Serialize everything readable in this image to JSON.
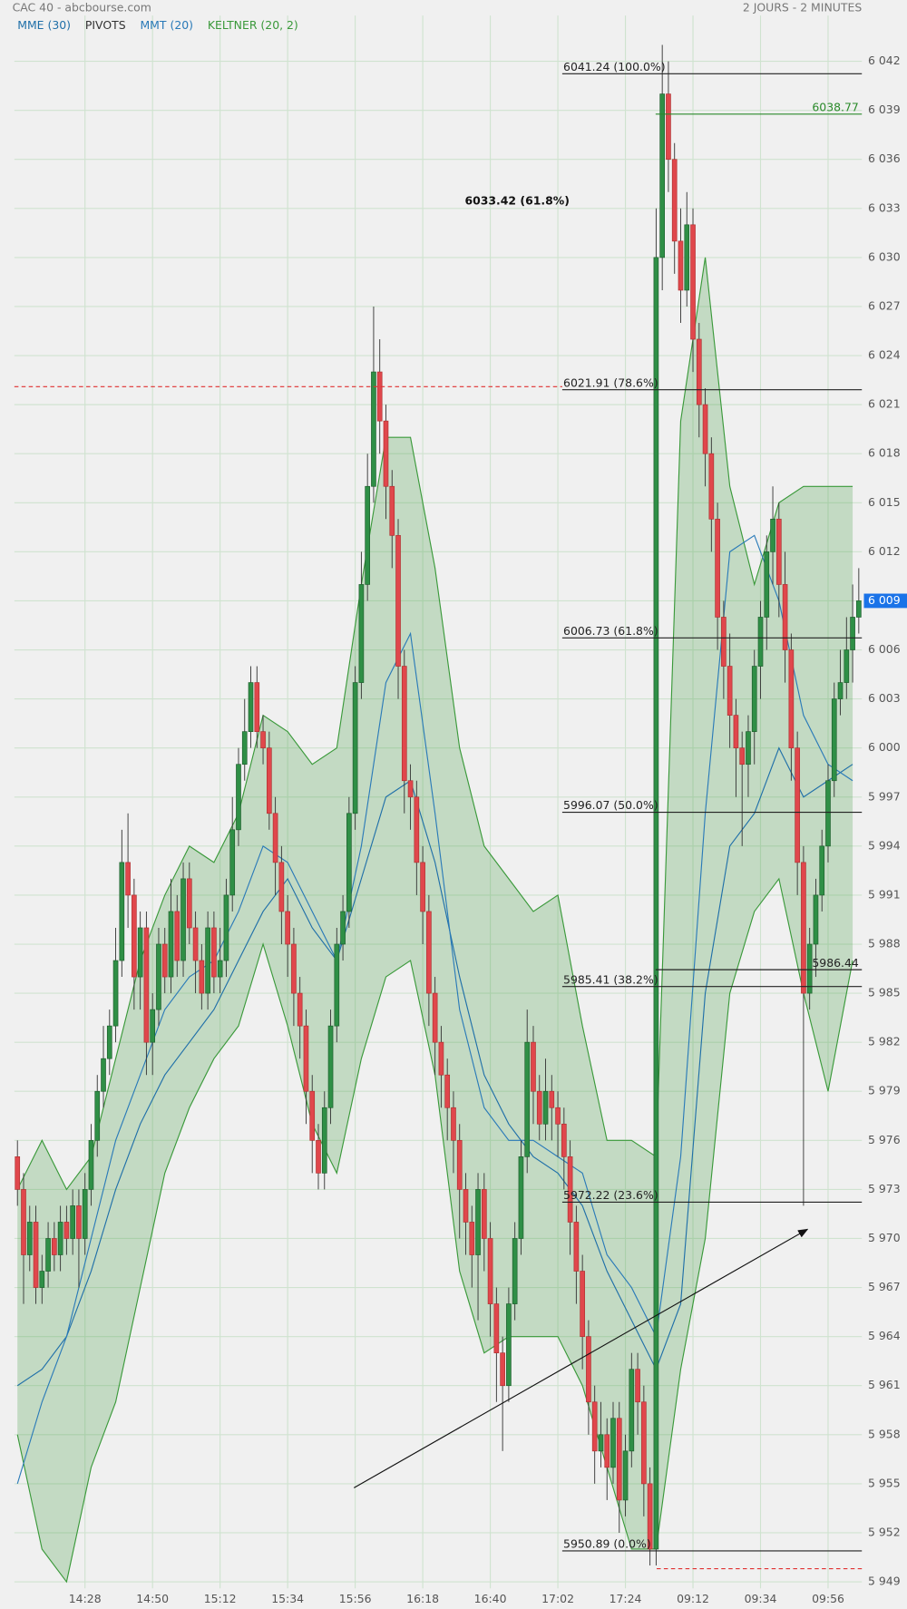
{
  "chart_data": {
    "type": "candlestick",
    "title": "CAC 40 - abcbourse.com",
    "subtitle": "2 JOURS - 2 MINUTES",
    "categories": [
      null,
      null,
      null,
      null,
      null,
      null,
      null,
      null,
      null,
      null,
      null,
      "14:28",
      null,
      null,
      null,
      null,
      null,
      null,
      null,
      null,
      null,
      null,
      "14:50",
      null,
      null,
      null,
      null,
      null,
      null,
      null,
      null,
      null,
      null,
      "15:12",
      null,
      null,
      null,
      null,
      null,
      null,
      null,
      null,
      null,
      null,
      "15:34",
      null,
      null,
      null,
      null,
      null,
      null,
      null,
      null,
      null,
      null,
      "15:56",
      null,
      null,
      null,
      null,
      null,
      null,
      null,
      null,
      null,
      null,
      "16:18",
      null,
      null,
      null,
      null,
      null,
      null,
      null,
      null,
      null,
      null,
      "16:40",
      null,
      null,
      null,
      null,
      null,
      null,
      null,
      null,
      null,
      null,
      "17:02",
      null,
      null,
      null,
      null,
      null,
      null,
      null,
      null,
      null,
      null,
      "17:24",
      null,
      null,
      null,
      null,
      null,
      null,
      null,
      null,
      null,
      null,
      "09:12",
      null,
      null,
      null,
      null,
      null,
      null,
      null,
      null,
      null,
      null,
      "09:34",
      null,
      null,
      null,
      null,
      null,
      null,
      null,
      null,
      null,
      null,
      "09:56",
      null,
      null,
      null,
      null,
      null
    ],
    "open": [
      5975,
      5973,
      5969,
      5971,
      5967,
      5968,
      5970,
      5969,
      5971,
      5970,
      5972,
      5970,
      5973,
      5976,
      5979,
      5981,
      5983,
      5987,
      5993,
      5991,
      5986,
      5989,
      5982,
      5984,
      5988,
      5986,
      5990,
      5987,
      5992,
      5989,
      5987,
      5985,
      5989,
      5986,
      5987,
      5991,
      5995,
      5999,
      6001,
      6004,
      6001,
      6000,
      5996,
      5993,
      5990,
      5988,
      5985,
      5983,
      5979,
      5976,
      5974,
      5978,
      5983,
      5988,
      5990,
      5996,
      6004,
      6010,
      6016,
      6023,
      6020,
      6016,
      6013,
      6005,
      5998,
      5997,
      5993,
      5990,
      5985,
      5982,
      5980,
      5978,
      5976,
      5973,
      5971,
      5969,
      5973,
      5970,
      5966,
      5963,
      5961,
      5966,
      5970,
      5975,
      5982,
      5979,
      5977,
      5979,
      5978,
      5977,
      5975,
      5971,
      5968,
      5964,
      5960,
      5957,
      5958,
      5956,
      5959,
      5954,
      5957,
      5962,
      5960,
      5955,
      5951,
      6030,
      6040,
      6036,
      6031,
      6028,
      6032,
      6025,
      6021,
      6018,
      6014,
      6008,
      6005,
      6002,
      6000,
      5999,
      6001,
      6005,
      6008,
      6012,
      6014,
      6010,
      6006,
      6000,
      5993,
      5985,
      5988,
      5991,
      5994,
      5998,
      6003,
      6004,
      6006,
      6008
    ],
    "high": [
      5976,
      5974,
      5972,
      5972,
      5969,
      5971,
      5971,
      5972,
      5972,
      5973,
      5973,
      5974,
      5977,
      5980,
      5983,
      5984,
      5989,
      5995,
      5996,
      5992,
      5990,
      5990,
      5985,
      5989,
      5989,
      5992,
      5991,
      5993,
      5993,
      5990,
      5988,
      5990,
      5990,
      5989,
      5992,
      5997,
      6000,
      6003,
      6005,
      6005,
      6002,
      6001,
      5997,
      5994,
      5991,
      5989,
      5986,
      5984,
      5980,
      5977,
      5979,
      5984,
      5989,
      5991,
      5997,
      6005,
      6012,
      6018,
      6027,
      6025,
      6021,
      6017,
      6014,
      6006,
      5999,
      5998,
      5994,
      5991,
      5986,
      5983,
      5981,
      5979,
      5977,
      5974,
      5972,
      5974,
      5974,
      5971,
      5967,
      5964,
      5967,
      5971,
      5976,
      5984,
      5983,
      5980,
      5981,
      5980,
      5979,
      5978,
      5976,
      5972,
      5969,
      5965,
      5961,
      5960,
      5959,
      5960,
      5960,
      5958,
      5963,
      5963,
      5961,
      5956,
      6033,
      6043,
      6042,
      6037,
      6033,
      6034,
      6033,
      6026,
      6022,
      6019,
      6015,
      6009,
      6007,
      6003,
      6001,
      6002,
      6006,
      6009,
      6013,
      6016,
      6015,
      6012,
      6007,
      6001,
      5994,
      5989,
      5992,
      5995,
      5999,
      6004,
      6006,
      6008,
      6010,
      6011
    ],
    "low": [
      5972,
      5966,
      5968,
      5966,
      5966,
      5967,
      5968,
      5968,
      5969,
      5969,
      5967,
      5969,
      5972,
      5975,
      5978,
      5980,
      5982,
      5986,
      5989,
      5984,
      5984,
      5980,
      5980,
      5983,
      5985,
      5985,
      5986,
      5986,
      5988,
      5985,
      5984,
      5984,
      5985,
      5985,
      5986,
      5990,
      5994,
      5998,
      6000,
      6000,
      5999,
      5995,
      5991,
      5988,
      5986,
      5983,
      5981,
      5977,
      5974,
      5973,
      5973,
      5977,
      5982,
      5987,
      5989,
      5995,
      6003,
      6009,
      6015,
      6018,
      6014,
      6011,
      6003,
      5996,
      5995,
      5991,
      5988,
      5983,
      5980,
      5978,
      5976,
      5974,
      5970,
      5969,
      5967,
      5965,
      5968,
      5964,
      5960,
      5957,
      5960,
      5965,
      5969,
      5974,
      5977,
      5976,
      5976,
      5976,
      5975,
      5973,
      5969,
      5966,
      5962,
      5958,
      5955,
      5956,
      5954,
      5955,
      5952,
      5953,
      5956,
      5958,
      5953,
      5950,
      5950,
      6028,
      6034,
      6029,
      6026,
      6027,
      6023,
      6019,
      6016,
      6012,
      6006,
      6003,
      6000,
      5997,
      5994,
      5997,
      5999,
      6003,
      6006,
      6010,
      6008,
      6004,
      5998,
      5991,
      5972,
      5984,
      5986,
      5990,
      5993,
      5997,
      6002,
      6003,
      6004,
      6007
    ],
    "close": [
      5973,
      5969,
      5971,
      5967,
      5968,
      5970,
      5969,
      5971,
      5970,
      5972,
      5970,
      5973,
      5976,
      5979,
      5981,
      5983,
      5987,
      5993,
      5991,
      5986,
      5989,
      5982,
      5984,
      5988,
      5986,
      5990,
      5987,
      5992,
      5989,
      5987,
      5985,
      5989,
      5986,
      5987,
      5991,
      5995,
      5999,
      6001,
      6004,
      6001,
      6000,
      5996,
      5993,
      5990,
      5988,
      5985,
      5983,
      5979,
      5976,
      5974,
      5978,
      5983,
      5988,
      5990,
      5996,
      6004,
      6010,
      6016,
      6023,
      6020,
      6016,
      6013,
      6005,
      5998,
      5997,
      5993,
      5990,
      5985,
      5982,
      5980,
      5978,
      5976,
      5973,
      5971,
      5969,
      5973,
      5970,
      5966,
      5963,
      5961,
      5966,
      5970,
      5975,
      5982,
      5979,
      5977,
      5979,
      5978,
      5977,
      5975,
      5971,
      5968,
      5964,
      5960,
      5957,
      5958,
      5956,
      5959,
      5954,
      5957,
      5962,
      5960,
      5955,
      5951,
      6030,
      6040,
      6036,
      6031,
      6028,
      6032,
      6025,
      6021,
      6018,
      6014,
      6008,
      6005,
      6002,
      6000,
      5999,
      6001,
      6005,
      6008,
      6012,
      6014,
      6010,
      6006,
      6000,
      5993,
      5985,
      5988,
      5991,
      5994,
      5998,
      6003,
      6004,
      6006,
      6008,
      6009
    ],
    "up_color": "#2f8f46",
    "down_color": "#e0474c",
    "ylim": [
      5948.6,
      6044.8
    ],
    "yticks": [
      {
        "value": 6042,
        "label": "6 042"
      },
      {
        "value": 6039,
        "label": "6 039"
      },
      {
        "value": 6036,
        "label": "6 036"
      },
      {
        "value": 6033,
        "label": "6 033"
      },
      {
        "value": 6030,
        "label": "6 030"
      },
      {
        "value": 6027,
        "label": "6 027"
      },
      {
        "value": 6024,
        "label": "6 024"
      },
      {
        "value": 6021,
        "label": "6 021"
      },
      {
        "value": 6018,
        "label": "6 018"
      },
      {
        "value": 6015,
        "label": "6 015"
      },
      {
        "value": 6012,
        "label": "6 012"
      },
      {
        "value": 6009,
        "label": "6 009"
      },
      {
        "value": 6006,
        "label": "6 006"
      },
      {
        "value": 6003,
        "label": "6 003"
      },
      {
        "value": 6000,
        "label": "6 000"
      },
      {
        "value": 5997,
        "label": "5 997"
      },
      {
        "value": 5994,
        "label": "5 994"
      },
      {
        "value": 5991,
        "label": "5 991"
      },
      {
        "value": 5988,
        "label": "5 988"
      },
      {
        "value": 5985,
        "label": "5 985"
      },
      {
        "value": 5982,
        "label": "5 982"
      },
      {
        "value": 5979,
        "label": "5 979"
      },
      {
        "value": 5976,
        "label": "5 976"
      },
      {
        "value": 5973,
        "label": "5 973"
      },
      {
        "value": 5970,
        "label": "5 970"
      },
      {
        "value": 5967,
        "label": "5 967"
      },
      {
        "value": 5964,
        "label": "5 964"
      },
      {
        "value": 5961,
        "label": "5 961"
      },
      {
        "value": 5958,
        "label": "5 958"
      },
      {
        "value": 5955,
        "label": "5 955"
      },
      {
        "value": 5952,
        "label": "5 952"
      },
      {
        "value": 5949,
        "label": "5 949"
      }
    ],
    "grid": true,
    "last_price": {
      "value": 6009,
      "label": "6 009"
    },
    "indicators": {
      "x": [
        0,
        4,
        8,
        12,
        16,
        20,
        24,
        28,
        32,
        36,
        40,
        44,
        48,
        52,
        56,
        60,
        64,
        68,
        72,
        76,
        80,
        84,
        88,
        92,
        96,
        100,
        104,
        108,
        112,
        116,
        120,
        124,
        128,
        132,
        136
      ],
      "series": [
        {
          "name": "MME (30)",
          "color": "#1f6fa8",
          "values": [
            5961,
            5962,
            5964,
            5968,
            5973,
            5977,
            5980,
            5982,
            5984,
            5987,
            5990,
            5992,
            5989,
            5987,
            5992,
            5997,
            5998,
            5993,
            5986,
            5980,
            5977,
            5975,
            5974,
            5972,
            5968,
            5965,
            5962,
            5966,
            5985,
            5994,
            5996,
            6000,
            5997,
            5998,
            5999
          ]
        },
        {
          "name": "MMT (20)",
          "color": "#2a7ab8",
          "values": [
            5955,
            5960,
            5964,
            5970,
            5976,
            5980,
            5984,
            5986,
            5987,
            5990,
            5994,
            5993,
            5990,
            5987,
            5994,
            6004,
            6007,
            5996,
            5984,
            5978,
            5976,
            5976,
            5975,
            5974,
            5969,
            5967,
            5964,
            5975,
            5996,
            6012,
            6013,
            6009,
            6002,
            5999,
            5998
          ]
        }
      ],
      "keltner": {
        "name": "KELTNER (20, 2)",
        "color": "#3a993a",
        "upper": [
          5973,
          5976,
          5973,
          5975,
          5981,
          5987,
          5991,
          5994,
          5993,
          5996,
          6002,
          6001,
          5999,
          6000,
          6010,
          6019,
          6019,
          6011,
          6000,
          5994,
          5992,
          5990,
          5991,
          5983,
          5976,
          5976,
          5975,
          6020,
          6030,
          6016,
          6010,
          6015,
          6016,
          6016,
          6016
        ],
        "lower": [
          5958,
          5951,
          5949,
          5956,
          5960,
          5967,
          5974,
          5978,
          5981,
          5983,
          5988,
          5983,
          5977,
          5974,
          5981,
          5986,
          5987,
          5980,
          5968,
          5963,
          5964,
          5964,
          5964,
          5961,
          5956,
          5951,
          5951,
          5962,
          5970,
          5985,
          5990,
          5992,
          5985,
          5979,
          5987
        ]
      }
    },
    "pivots": {
      "name": "PIVOTS",
      "label_color": "#333333",
      "color": "#e03030",
      "values": [
        6022.1,
        5949.8
      ]
    },
    "fibonacci": {
      "levels": [
        {
          "value": 6041.24,
          "label": "6041.24  (100.0%)"
        },
        {
          "value": 6021.91,
          "label": "6021.91  (78.6%)"
        },
        {
          "value": 6006.73,
          "label": "6006.73  (61.8%)"
        },
        {
          "value": 5996.07,
          "label": "5996.07  (50.0%)"
        },
        {
          "value": 5985.41,
          "label": "5985.41  (38.2%)"
        },
        {
          "value": 5972.22,
          "label": "5972.22  (23.6%)"
        },
        {
          "value": 5950.89,
          "label": "5950.89  (0.0%)"
        }
      ]
    },
    "levels": [
      {
        "value": 6038.77,
        "label": "6038.77",
        "color": "#2a8a2a"
      },
      {
        "value": 5986.44,
        "label": "5986.44",
        "color": "#222222"
      }
    ],
    "annotation": {
      "value": 6033.42,
      "label": "6033.42  (61.8%)"
    }
  }
}
